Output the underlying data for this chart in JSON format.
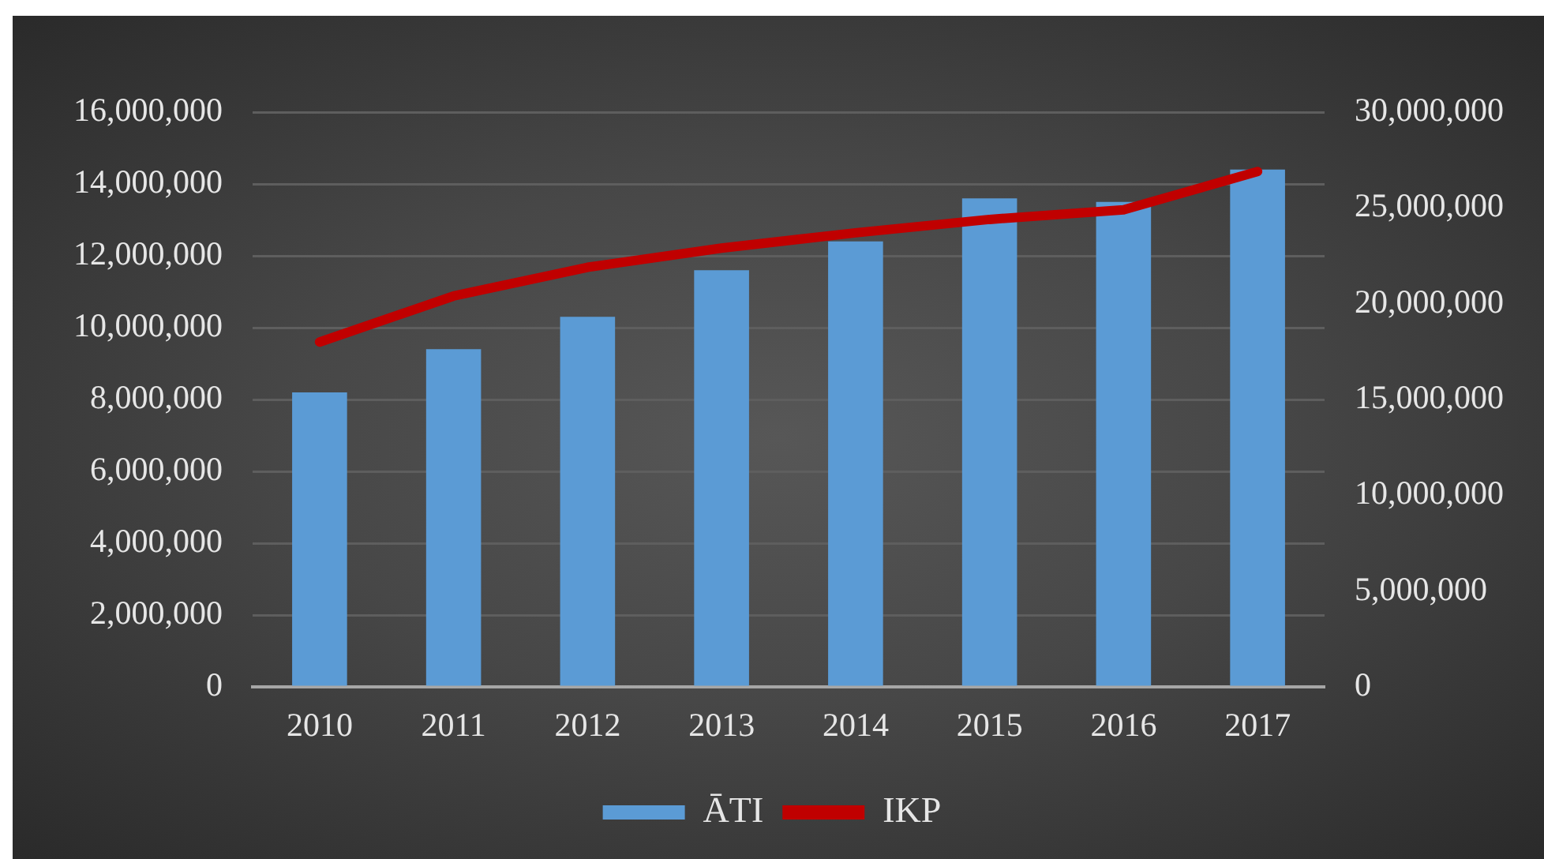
{
  "chart_data": {
    "type": "bar",
    "categories": [
      "2010",
      "2011",
      "2012",
      "2013",
      "2014",
      "2015",
      "2016",
      "2017"
    ],
    "series": [
      {
        "name": "ĀTI",
        "color": "#5b9bd5",
        "values": [
          8200000,
          9400000,
          10300000,
          11600000,
          12400000,
          13600000,
          13500000,
          14400000
        ]
      },
      {
        "name": "IKP",
        "type": "line",
        "axis": "y2",
        "color": "#c00000",
        "values": [
          18000000,
          20400000,
          21900000,
          22900000,
          23700000,
          24400000,
          24900000,
          26900000
        ]
      }
    ],
    "ylim": [
      0,
      16000000
    ],
    "yticks": [
      {
        "value": 0,
        "label": "0"
      },
      {
        "value": 2000000,
        "label": "2,000,000"
      },
      {
        "value": 4000000,
        "label": "4,000,000"
      },
      {
        "value": 6000000,
        "label": "6,000,000"
      },
      {
        "value": 8000000,
        "label": "8,000,000"
      },
      {
        "value": 10000000,
        "label": "10,000,000"
      },
      {
        "value": 12000000,
        "label": "12,000,000"
      },
      {
        "value": 14000000,
        "label": "14,000,000"
      },
      {
        "value": 16000000,
        "label": "16,000,000"
      }
    ],
    "y2lim": [
      0,
      30000000
    ],
    "y2ticks": [
      {
        "value": 0,
        "label": "0"
      },
      {
        "value": 5000000,
        "label": "5,000,000"
      },
      {
        "value": 10000000,
        "label": "10,000,000"
      },
      {
        "value": 15000000,
        "label": "15,000,000"
      },
      {
        "value": 20000000,
        "label": "20,000,000"
      },
      {
        "value": 25000000,
        "label": "25,000,000"
      },
      {
        "value": 30000000,
        "label": "30,000,000"
      }
    ],
    "grid": "y",
    "legend": "bottom",
    "marker": "none"
  }
}
